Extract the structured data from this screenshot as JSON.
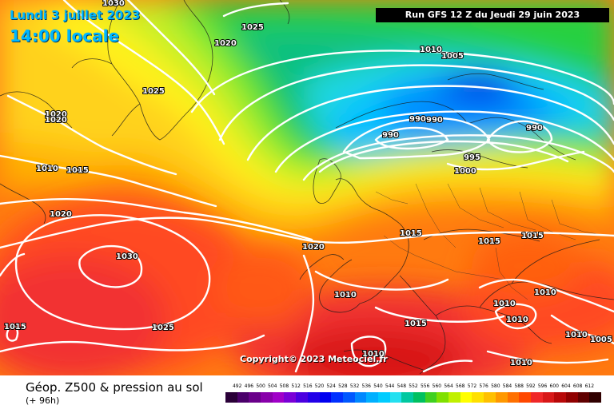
{
  "header": {
    "date": "Lundi 3 juillet 2023",
    "local_time": "14:00 locale",
    "run": "Run GFS 12 Z du Jeudi 29 juin 2023"
  },
  "copyright": "Copyright© 2023 Meteociel.fr",
  "legend": {
    "title": "Géop. Z500 & pression au sol",
    "lead": "(+ 96h)",
    "scale_values": [
      "492",
      "496",
      "500",
      "504",
      "508",
      "512",
      "516",
      "520",
      "524",
      "528",
      "532",
      "536",
      "540",
      "544",
      "548",
      "552",
      "556",
      "560",
      "564",
      "568",
      "572",
      "576",
      "580",
      "584",
      "588",
      "592",
      "596",
      "600",
      "604",
      "608",
      "612"
    ],
    "scale_colors": [
      "#2a0038",
      "#4a006a",
      "#6a008a",
      "#8800aa",
      "#a000c8",
      "#7a00d6",
      "#4b00e0",
      "#2200e8",
      "#0000f0",
      "#0030ff",
      "#0058ff",
      "#0088ff",
      "#00b0ff",
      "#00ccff",
      "#24e0f0",
      "#00c8a0",
      "#00c060",
      "#40d020",
      "#80e000",
      "#c0f000",
      "#ffff00",
      "#ffe000",
      "#ffc000",
      "#ff9800",
      "#ff7000",
      "#ff4800",
      "#f02828",
      "#d81818",
      "#b80808",
      "#900000",
      "#600000",
      "#300000"
    ]
  },
  "pressure_labels": [
    {
      "text": "1030"
    },
    {
      "text": "1025"
    },
    {
      "text": "1020"
    },
    {
      "text": "1025"
    },
    {
      "text": "1020"
    },
    {
      "text": "1020"
    },
    {
      "text": "1010"
    },
    {
      "text": "1015"
    },
    {
      "text": "1020"
    },
    {
      "text": "1010"
    },
    {
      "text": "1005"
    },
    {
      "text": "990"
    },
    {
      "text": "990"
    },
    {
      "text": "990"
    },
    {
      "text": "990"
    },
    {
      "text": "995"
    },
    {
      "text": "1000"
    },
    {
      "text": "1020"
    },
    {
      "text": "1015"
    },
    {
      "text": "1015"
    },
    {
      "text": "1015"
    },
    {
      "text": "1030"
    },
    {
      "text": "1010"
    },
    {
      "text": "1025"
    },
    {
      "text": "1015"
    },
    {
      "text": "1015"
    },
    {
      "text": "1010"
    },
    {
      "text": "1010"
    },
    {
      "text": "1010"
    },
    {
      "text": "1010"
    },
    {
      "text": "1010"
    },
    {
      "text": "1010"
    },
    {
      "text": "1005"
    }
  ]
}
